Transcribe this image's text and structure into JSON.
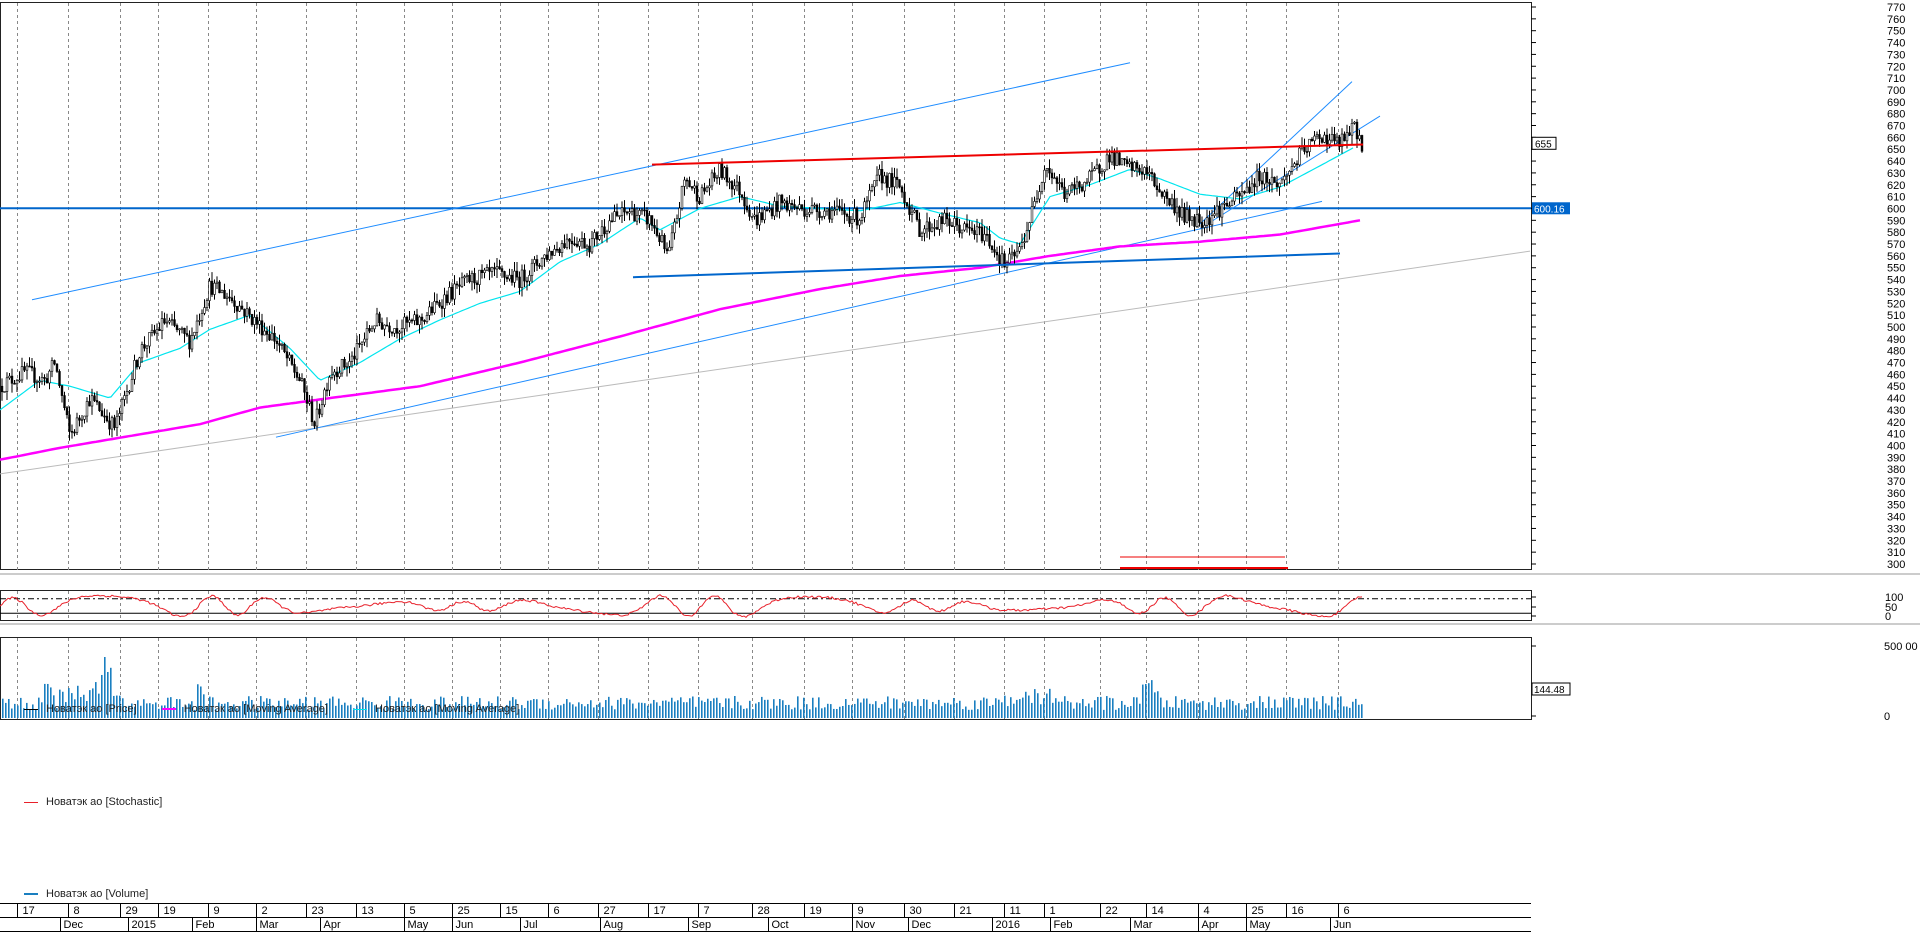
{
  "colors": {
    "price": "#000000",
    "ma_long": "#ff00ff",
    "ma_short": "#00e5ee",
    "trend_blue": "#1e8cff",
    "support_blue": "#0066cc",
    "resistance_red": "#ee0000",
    "grid": "#888888",
    "stochastic": "#e8202a",
    "volume": "#1a7fc0",
    "gray_trend": "#bbbbbb"
  },
  "legends": {
    "price_panel": [
      {
        "label": "Новатэк ао [Price]",
        "color": "#000000"
      },
      {
        "label": "Новатэк ао [Moving Average]",
        "color": "#ff00ff"
      },
      {
        "label": "Новатэк ао [Moving Average]",
        "color": "#00e5ee"
      }
    ],
    "stochastic_panel": {
      "label": "Новатэк ао [Stochastic]",
      "color": "#e8202a"
    },
    "volume_panel": {
      "label": "Новатэк ао [Volume]",
      "color": "#1a7fc0"
    }
  },
  "chart_data": [
    {
      "type": "line",
      "panel": "price",
      "y_axis": {
        "min": 300,
        "max": 770,
        "step": 10,
        "label_side": "right"
      },
      "price_labels": {
        "last_price": "655",
        "horizontal_level": "600.16"
      },
      "series": [
        {
          "name": "Новатэк ао [Price]",
          "kind": "candlestick",
          "anchors": [
            [
              0,
              450
            ],
            [
              25,
              462
            ],
            [
              45,
              455
            ],
            [
              55,
              470
            ],
            [
              70,
              408
            ],
            [
              90,
              440
            ],
            [
              115,
              415
            ],
            [
              140,
              480
            ],
            [
              165,
              505
            ],
            [
              190,
              488
            ],
            [
              210,
              535
            ],
            [
              230,
              525
            ],
            [
              255,
              505
            ],
            [
              275,
              490
            ],
            [
              300,
              455
            ],
            [
              315,
              418
            ],
            [
              330,
              462
            ],
            [
              350,
              470
            ],
            [
              375,
              505
            ],
            [
              395,
              500
            ],
            [
              420,
              505
            ],
            [
              445,
              525
            ],
            [
              470,
              540
            ],
            [
              495,
              545
            ],
            [
              520,
              540
            ],
            [
              545,
              560
            ],
            [
              570,
              575
            ],
            [
              590,
              570
            ],
            [
              610,
              590
            ],
            [
              630,
              598
            ],
            [
              650,
              590
            ],
            [
              660,
              575
            ],
            [
              668,
              558
            ],
            [
              685,
              625
            ],
            [
              700,
              610
            ],
            [
              720,
              632
            ],
            [
              740,
              615
            ],
            [
              755,
              590
            ],
            [
              780,
              605
            ],
            [
              800,
              600
            ],
            [
              830,
              598
            ],
            [
              860,
              592
            ],
            [
              880,
              628
            ],
            [
              900,
              618
            ],
            [
              920,
              582
            ],
            [
              945,
              590
            ],
            [
              965,
              582
            ],
            [
              985,
              578
            ],
            [
              1005,
              552
            ],
            [
              1020,
              565
            ],
            [
              1035,
              605
            ],
            [
              1045,
              638
            ],
            [
              1065,
              612
            ],
            [
              1090,
              625
            ],
            [
              1110,
              645
            ],
            [
              1125,
              635
            ],
            [
              1145,
              632
            ],
            [
              1165,
              610
            ],
            [
              1185,
              593
            ],
            [
              1205,
              590
            ],
            [
              1220,
              600
            ],
            [
              1240,
              610
            ],
            [
              1260,
              628
            ],
            [
              1280,
              620
            ],
            [
              1300,
              645
            ],
            [
              1320,
              662
            ],
            [
              1340,
              655
            ],
            [
              1355,
              668
            ],
            [
              1362,
              655
            ]
          ]
        },
        {
          "name": "Новатэк ао [Moving Average]",
          "kind": "line",
          "anchors": [
            [
              0,
              388
            ],
            [
              60,
              398
            ],
            [
              130,
              408
            ],
            [
              200,
              418
            ],
            [
              260,
              432
            ],
            [
              330,
              440
            ],
            [
              420,
              450
            ],
            [
              520,
              470
            ],
            [
              620,
              492
            ],
            [
              720,
              515
            ],
            [
              820,
              532
            ],
            [
              900,
              543
            ],
            [
              980,
              550
            ],
            [
              1050,
              560
            ],
            [
              1120,
              568
            ],
            [
              1200,
              572
            ],
            [
              1280,
              578
            ],
            [
              1360,
              590
            ]
          ]
        },
        {
          "name": "Новатэк ао [Moving Average]",
          "kind": "line",
          "anchors": [
            [
              0,
              430
            ],
            [
              40,
              455
            ],
            [
              70,
              450
            ],
            [
              110,
              440
            ],
            [
              140,
              470
            ],
            [
              180,
              482
            ],
            [
              210,
              498
            ],
            [
              250,
              510
            ],
            [
              290,
              482
            ],
            [
              320,
              455
            ],
            [
              360,
              470
            ],
            [
              400,
              490
            ],
            [
              440,
              506
            ],
            [
              480,
              520
            ],
            [
              520,
              530
            ],
            [
              560,
              555
            ],
            [
              600,
              570
            ],
            [
              640,
              592
            ],
            [
              660,
              582
            ],
            [
              700,
              600
            ],
            [
              740,
              610
            ],
            [
              780,
              602
            ],
            [
              820,
              600
            ],
            [
              860,
              598
            ],
            [
              900,
              605
            ],
            [
              940,
              596
            ],
            [
              980,
              588
            ],
            [
              1000,
              575
            ],
            [
              1020,
              570
            ],
            [
              1050,
              610
            ],
            [
              1090,
              620
            ],
            [
              1130,
              633
            ],
            [
              1160,
              625
            ],
            [
              1200,
              612
            ],
            [
              1240,
              608
            ],
            [
              1280,
              618
            ],
            [
              1320,
              636
            ],
            [
              1355,
              652
            ]
          ]
        }
      ],
      "annotations": {
        "blue_channel_upper": [
          [
            32,
            523
          ],
          [
            1130,
            723
          ]
        ],
        "blue_trend_lower": [
          [
            276,
            407
          ],
          [
            1322,
            606
          ]
        ],
        "blue_trend_short": [
          [
            1200,
            587
          ],
          [
            1352,
            707
          ]
        ],
        "blue_trend_short2": [
          [
            1200,
            583
          ],
          [
            1380,
            678
          ]
        ],
        "red_resistance": [
          [
            652,
            637
          ],
          [
            1363,
            654
          ]
        ],
        "blue_support": [
          [
            633,
            542
          ],
          [
            1340,
            562
          ]
        ],
        "gray_long_trend": [
          [
            0,
            376
          ],
          [
            1530,
            564
          ]
        ],
        "horizontal_level": 600.16
      }
    },
    {
      "type": "line",
      "panel": "stochastic",
      "name": "Новатэк ао [Stochastic]",
      "y_axis": {
        "min": 0,
        "max": 100,
        "ticks": [
          0,
          50,
          100
        ]
      },
      "levels": [
        20,
        80
      ]
    },
    {
      "type": "bar",
      "panel": "volume",
      "name": "Новатэк ао [Volume]",
      "y_axis": {
        "ticks_labels": [
          "0",
          "500 00"
        ]
      },
      "last_value_label": "144.48"
    }
  ],
  "x_axis": {
    "day_ticks": [
      "17",
      "8",
      "29",
      "19",
      "9",
      "2",
      "23",
      "13",
      "5",
      "25",
      "15",
      "6",
      "27",
      "17",
      "7",
      "28",
      "19",
      "9",
      "30",
      "21",
      "11",
      "1",
      "22",
      "14",
      "4",
      "25",
      "16",
      "6"
    ],
    "month_ticks": [
      "Dec",
      "2015",
      "Feb",
      "Mar",
      "Apr",
      "May",
      "Jun",
      "Jul",
      "Aug",
      "Sep",
      "Oct",
      "Nov",
      "Dec",
      "2016",
      "Feb",
      "Mar",
      "Apr",
      "May",
      "Jun"
    ]
  }
}
